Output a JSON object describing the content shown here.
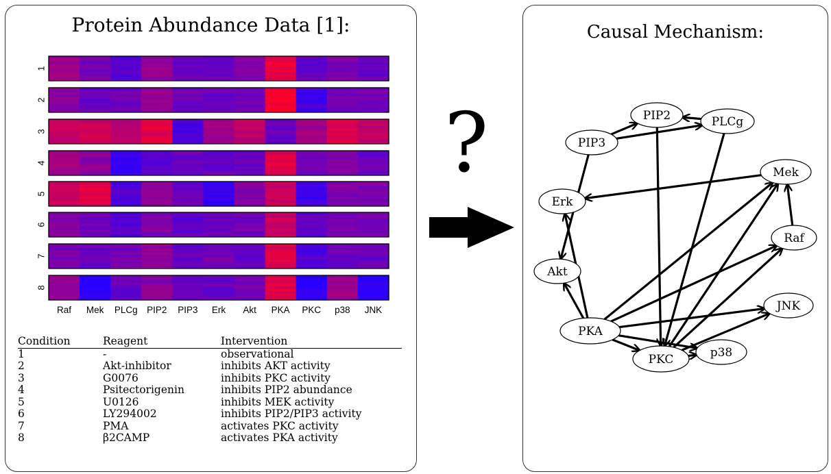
{
  "left_panel": {
    "title": "Protein Abundance Data [1]:",
    "proteins": [
      "Raf",
      "Mek",
      "PLCg",
      "PIP2",
      "PIP3",
      "Erk",
      "Akt",
      "PKA",
      "PKC",
      "p38",
      "JNK"
    ],
    "conditions_rows": [
      "1",
      "2",
      "3",
      "4",
      "5",
      "6",
      "7",
      "8"
    ],
    "heatmap_levels": [
      [
        0.55,
        0.35,
        0.2,
        0.5,
        0.3,
        0.3,
        0.4,
        0.9,
        0.25,
        0.4,
        0.3
      ],
      [
        0.45,
        0.3,
        0.3,
        0.5,
        0.3,
        0.3,
        0.35,
        0.95,
        0.15,
        0.35,
        0.35
      ],
      [
        0.75,
        0.75,
        0.65,
        0.85,
        0.15,
        0.55,
        0.7,
        0.3,
        0.55,
        0.85,
        0.7
      ],
      [
        0.55,
        0.45,
        0.1,
        0.2,
        0.3,
        0.3,
        0.3,
        0.85,
        0.3,
        0.4,
        0.3
      ],
      [
        0.75,
        0.85,
        0.2,
        0.5,
        0.3,
        0.05,
        0.4,
        0.75,
        0.1,
        0.4,
        0.4
      ],
      [
        0.4,
        0.35,
        0.2,
        0.4,
        0.25,
        0.3,
        0.35,
        0.75,
        0.25,
        0.4,
        0.35
      ],
      [
        0.35,
        0.3,
        0.35,
        0.5,
        0.3,
        0.35,
        0.3,
        0.85,
        0.2,
        0.3,
        0.3
      ],
      [
        0.5,
        0.0,
        0.3,
        0.45,
        0.3,
        0.3,
        0.35,
        0.85,
        0.0,
        0.55,
        0.0
      ]
    ],
    "table": {
      "headers": [
        "Condition",
        "Reagent",
        "Intervention"
      ],
      "rows": [
        [
          "1",
          "-",
          "observational"
        ],
        [
          "2",
          "Akt-inhibitor",
          "inhibits AKT activity"
        ],
        [
          "3",
          "G0076",
          "inhibits PKC activity"
        ],
        [
          "4",
          "Psitectorigenin",
          "inhibits PIP2 abundance"
        ],
        [
          "5",
          "U0126",
          "inhibits MEK activity"
        ],
        [
          "6",
          "LY294002",
          "inhibits PIP2/PIP3 activity"
        ],
        [
          "7",
          "PMA",
          "activates PKC activity"
        ],
        [
          "8",
          "β2CAMP",
          "activates PKA activity"
        ]
      ]
    }
  },
  "middle": {
    "question_mark": "?"
  },
  "right_panel": {
    "title": "Causal Mechanism:",
    "nodes": [
      "PIP2",
      "PLCg",
      "PIP3",
      "Mek",
      "Erk",
      "Raf",
      "Akt",
      "JNK",
      "PKA",
      "p38",
      "PKC"
    ],
    "edges": [
      [
        "PIP3",
        "PIP2"
      ],
      [
        "PIP3",
        "PLCg"
      ],
      [
        "PLCg",
        "PIP2"
      ],
      [
        "PIP2",
        "PKC"
      ],
      [
        "PLCg",
        "PKC"
      ],
      [
        "Mek",
        "Erk"
      ],
      [
        "PIP3",
        "Akt"
      ],
      [
        "Raf",
        "Mek"
      ],
      [
        "PKA",
        "Erk"
      ],
      [
        "PKA",
        "Akt"
      ],
      [
        "PKA",
        "Mek"
      ],
      [
        "PKA",
        "Raf"
      ],
      [
        "PKA",
        "JNK"
      ],
      [
        "PKA",
        "p38"
      ],
      [
        "PKA",
        "PKC"
      ],
      [
        "PKC",
        "Mek"
      ],
      [
        "PKC",
        "Raf"
      ],
      [
        "PKC",
        "JNK"
      ],
      [
        "PKC",
        "p38"
      ]
    ]
  }
}
